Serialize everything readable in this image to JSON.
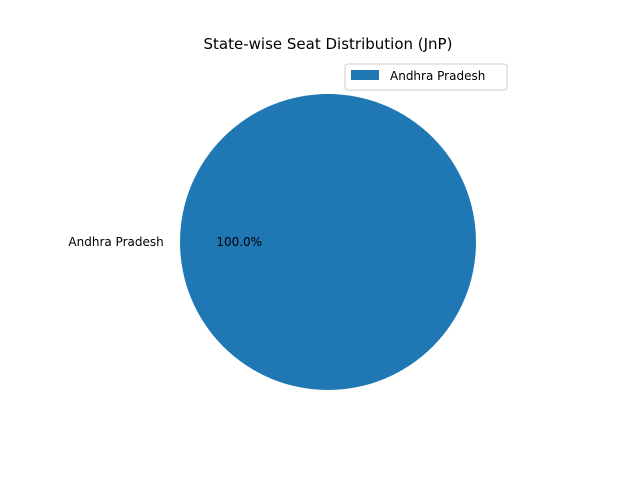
{
  "chart_data": {
    "type": "pie",
    "title": "State-wise Seat Distribution (JnP)",
    "categories": [
      "Andhra Pradesh"
    ],
    "values": [
      100.0
    ],
    "percent_labels": [
      "100.0%"
    ],
    "colors": [
      "#1f77b4"
    ],
    "legend": {
      "placement": "top-right",
      "entries": [
        "Andhra Pradesh"
      ]
    }
  }
}
